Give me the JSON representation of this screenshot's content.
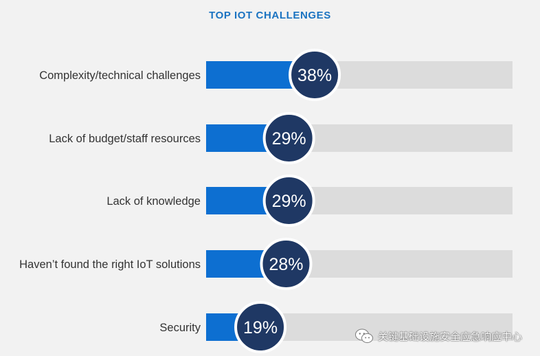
{
  "chart_data": {
    "type": "bar",
    "orientation": "horizontal",
    "title": "TOP IOT CHALLENGES",
    "categories": [
      "Complexity/technical challenges",
      "Lack of budget/staff resources",
      "Lack of knowledge",
      "Haven’t found the right IoT solutions",
      "Security"
    ],
    "values": [
      38,
      29,
      29,
      28,
      19
    ],
    "value_labels": [
      "38%",
      "29%",
      "29%",
      "28%",
      "19%"
    ],
    "unit": "%",
    "xlim": [
      0,
      100
    ],
    "grid": false,
    "legend": "none"
  },
  "colors": {
    "background": "#f2f2f2",
    "title": "#1a73c1",
    "bar_fill": "#0d6fd1",
    "bar_track": "#dcdcdc",
    "badge_fill": "#1f3864",
    "badge_border": "#ffffff",
    "badge_text": "#ffffff",
    "label_text": "#333333"
  },
  "watermark": {
    "icon": "wechat-icon",
    "text": "关键基础设施安全应急响应中心"
  }
}
